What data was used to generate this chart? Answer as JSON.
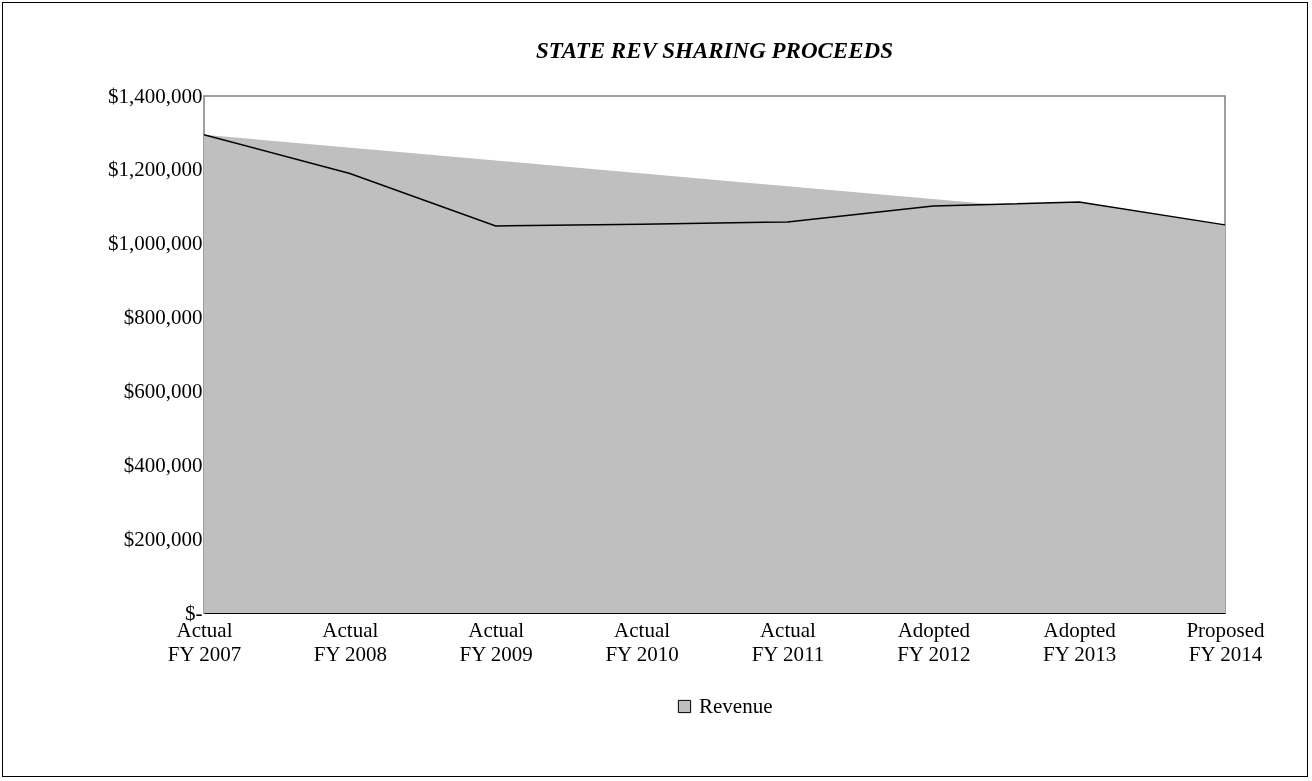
{
  "chart_data": {
    "type": "area",
    "title": "STATE REV SHARING PROCEEDS",
    "categories": [
      "Actual FY 2007",
      "Actual FY 2008",
      "Actual FY 2009",
      "Actual FY 2010",
      "Actual FY 2011",
      "Adopted FY 2012",
      "Adopted FY 2013",
      "Proposed FY 2014"
    ],
    "series": [
      {
        "name": "Revenue",
        "color": "#bfbfbf",
        "values": [
          1295000,
          1190000,
          1048000,
          1053000,
          1059000,
          1102000,
          1113000,
          1051000
        ]
      }
    ],
    "ylim": [
      0,
      1400000
    ],
    "yticks": [
      {
        "value": 0,
        "label": "$-"
      },
      {
        "value": 200000,
        "label": "$200,000"
      },
      {
        "value": 400000,
        "label": "$400,000"
      },
      {
        "value": 600000,
        "label": "$600,000"
      },
      {
        "value": 800000,
        "label": "$800,000"
      },
      {
        "value": 1000000,
        "label": "$1,000,000"
      },
      {
        "value": 1200000,
        "label": "$1,200,000"
      },
      {
        "value": 1400000,
        "label": "$1,400,000"
      }
    ],
    "grid": false,
    "legend": "bottom"
  }
}
